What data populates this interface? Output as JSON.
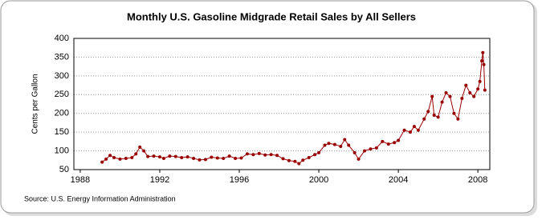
{
  "chart_data": {
    "type": "line",
    "title": "Monthly U.S. Gasoline Midgrade Retail Sales by All Sellers",
    "y_label": "Cents per Gallon",
    "source": "Source: U.S. Energy Information Administration",
    "xlim": [
      1987.68,
      2008.6
    ],
    "xticks": [
      1988,
      1992,
      1996,
      2000,
      2004,
      2008
    ],
    "ylim": [
      50,
      400
    ],
    "yticks": [
      50,
      100,
      150,
      200,
      250,
      300,
      350,
      400
    ],
    "grid": true,
    "series": [
      {
        "name": "Midgrade",
        "color": "#990000",
        "x": [
          1989.1,
          1989.3,
          1989.5,
          1989.7,
          1990.0,
          1990.3,
          1990.6,
          1990.8,
          1991.0,
          1991.2,
          1991.4,
          1991.7,
          1992.0,
          1992.2,
          1992.5,
          1992.8,
          1993.1,
          1993.4,
          1993.7,
          1994.0,
          1994.3,
          1994.6,
          1994.9,
          1995.2,
          1995.5,
          1995.8,
          1996.1,
          1996.4,
          1996.7,
          1997.0,
          1997.3,
          1997.6,
          1997.9,
          1998.2,
          1998.5,
          1998.8,
          1999.0,
          1999.2,
          1999.5,
          1999.8,
          2000.0,
          2000.3,
          2000.5,
          2000.8,
          2001.1,
          2001.3,
          2001.5,
          2001.8,
          2002.0,
          2002.3,
          2002.6,
          2002.9,
          2003.2,
          2003.5,
          2003.8,
          2004.0,
          2004.3,
          2004.6,
          2004.8,
          2005.0,
          2005.3,
          2005.5,
          2005.7,
          2005.8,
          2006.0,
          2006.2,
          2006.4,
          2006.6,
          2006.8,
          2007.0,
          2007.2,
          2007.4,
          2007.6,
          2007.8,
          2008.0,
          2008.1,
          2008.2,
          2008.25,
          2008.3,
          2008.35
        ],
        "values": [
          70,
          78,
          88,
          82,
          78,
          80,
          82,
          92,
          110,
          100,
          85,
          86,
          84,
          80,
          86,
          85,
          82,
          84,
          80,
          76,
          77,
          83,
          81,
          80,
          86,
          80,
          81,
          92,
          90,
          93,
          89,
          90,
          88,
          79,
          74,
          72,
          66,
          75,
          82,
          90,
          95,
          115,
          120,
          117,
          112,
          130,
          115,
          95,
          78,
          100,
          105,
          108,
          125,
          118,
          122,
          128,
          155,
          150,
          165,
          155,
          185,
          205,
          245,
          195,
          190,
          230,
          255,
          245,
          200,
          185,
          240,
          275,
          255,
          245,
          265,
          285,
          340,
          362,
          330,
          262
        ]
      }
    ]
  }
}
